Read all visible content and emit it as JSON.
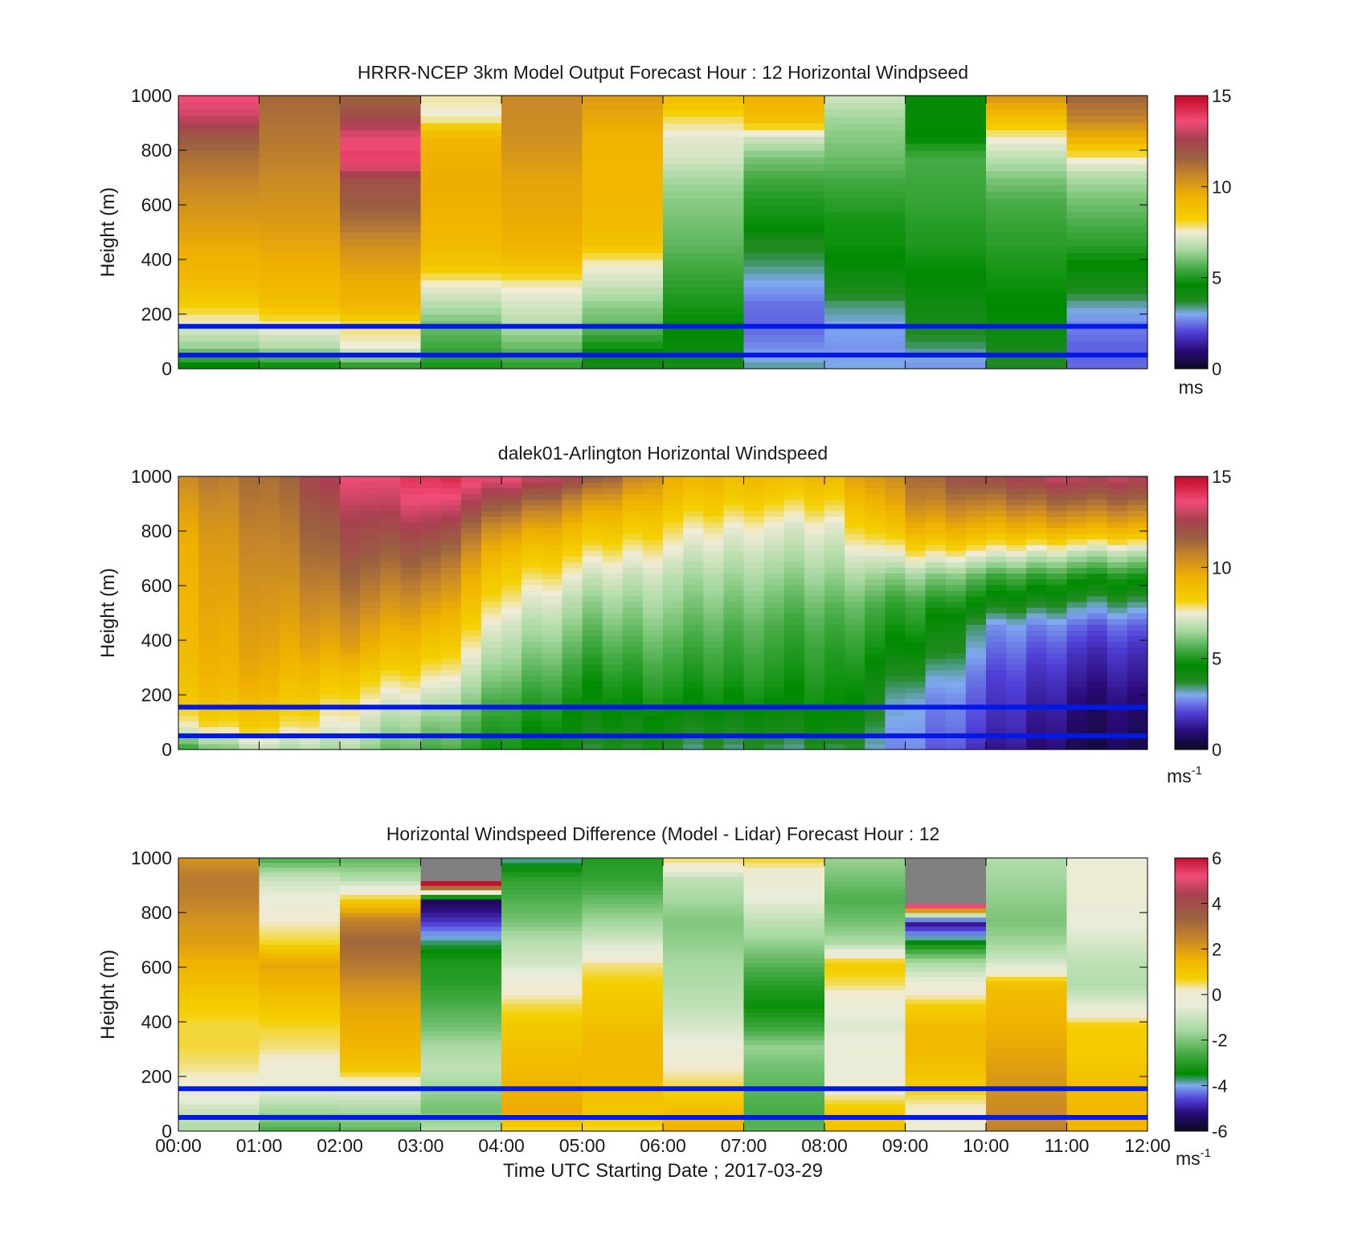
{
  "x_label": "Time UTC  Starting Date ; 2017-03-29",
  "time_ticks": [
    "00:00",
    "01:00",
    "02:00",
    "03:00",
    "04:00",
    "05:00",
    "06:00",
    "07:00",
    "08:00",
    "09:00",
    "10:00",
    "11:00",
    "12:00"
  ],
  "colors": {
    "reference_lines": "#0018e8",
    "missing": "#ffffff",
    "bad": "#808080"
  },
  "chart_data": [
    {
      "type": "heatmap",
      "title": "HRRR-NCEP 3km Model Output   Forecast Hour : 12 Horizontal Windpseed",
      "ylabel": "Height (m)",
      "xlabel": "",
      "ylim": [
        0,
        1000
      ],
      "y_ticks": [
        "0",
        "200",
        "400",
        "600",
        "800",
        "1000"
      ],
      "colorbar": {
        "min": 0,
        "max": 15,
        "ticks": [
          "0",
          "5",
          "10",
          "15"
        ],
        "unit": "ms",
        "unit_sup": ""
      },
      "reference_heights_m": [
        50,
        155
      ],
      "x_hours": [
        0,
        1,
        2,
        3,
        4,
        5,
        6,
        7,
        8,
        9,
        10,
        11
      ],
      "z_profiles_ms": [
        [
          4.5,
          6.5,
          7.5,
          8.5,
          9.2,
          9.6,
          9.9,
          10.3,
          10.6,
          11.0,
          11.4,
          12.0,
          13.3,
          14.0
        ],
        [
          4.5,
          6.6,
          7.5,
          8.8,
          9.2,
          9.5,
          9.8,
          10.1,
          10.3,
          10.5,
          10.8,
          11.0,
          11.2,
          11.4
        ],
        [
          4.6,
          7.2,
          7.6,
          9.0,
          9.3,
          9.7,
          10.2,
          11.0,
          11.5,
          11.9,
          13.7,
          13.2,
          12.0,
          11.2
        ],
        [
          5.0,
          5.5,
          6.0,
          6.8,
          7.6,
          8.8,
          9.2,
          9.4,
          9.6,
          9.7,
          9.6,
          9.4,
          7.6,
          7.8
        ],
        [
          5.0,
          5.7,
          6.5,
          7.0,
          7.5,
          8.7,
          9.3,
          9.5,
          9.6,
          9.7,
          10.0,
          10.3,
          10.4,
          10.5
        ],
        [
          4.2,
          5.0,
          6.0,
          6.5,
          7.2,
          7.8,
          9.0,
          9.3,
          9.4,
          9.5,
          9.5,
          9.6,
          10.0,
          10.3
        ],
        [
          4.0,
          4.3,
          4.6,
          4.9,
          5.2,
          5.5,
          5.8,
          6.0,
          6.2,
          6.5,
          7.1,
          7.3,
          8.0,
          9.0
        ],
        [
          3.1,
          2.5,
          2.1,
          2.2,
          2.7,
          3.2,
          3.6,
          4.5,
          4.8,
          5.2,
          5.8,
          6.8,
          8.8,
          9.2
        ],
        [
          3.2,
          2.9,
          3.1,
          3.5,
          4.2,
          4.6,
          4.9,
          5.0,
          5.3,
          5.6,
          6.0,
          6.3,
          6.6,
          7.2
        ],
        [
          2.6,
          3.3,
          3.8,
          4.0,
          4.3,
          4.6,
          4.9,
          5.0,
          5.2,
          5.3,
          5.4,
          4.5,
          4.3,
          4.4
        ],
        [
          4.0,
          4.2,
          4.6,
          4.8,
          5.0,
          5.2,
          5.4,
          5.6,
          5.8,
          6.3,
          7.0,
          7.8,
          9.2,
          10.5
        ],
        [
          2.4,
          2.3,
          2.6,
          3.2,
          4.0,
          4.6,
          5.2,
          5.6,
          6.0,
          6.5,
          7.6,
          9.5,
          10.8,
          11.5
        ]
      ]
    },
    {
      "type": "heatmap",
      "title": "dalek01-Arlington  Horizontal Windspeed",
      "ylabel": "Height (m)",
      "xlabel": "",
      "ylim": [
        0,
        1000
      ],
      "y_ticks": [
        "0",
        "200",
        "400",
        "600",
        "800",
        "1000"
      ],
      "colorbar": {
        "min": 0,
        "max": 15,
        "ticks": [
          "0",
          "5",
          "10",
          "15"
        ],
        "unit": "ms",
        "unit_sup": "-1"
      },
      "reference_heights_m": [
        50,
        155
      ],
      "x_hours": [
        0,
        1,
        2,
        3,
        4,
        5,
        6,
        7,
        8,
        9,
        10,
        11
      ],
      "z_profiles_ms": [
        [
          5.5,
          7.8,
          8.8,
          9.1,
          9.3,
          9.4,
          9.5,
          9.6,
          9.7,
          9.9,
          10.3,
          10.8
        ],
        [
          6.8,
          8.4,
          9.0,
          9.5,
          9.8,
          10.0,
          10.2,
          10.4,
          10.6,
          10.8,
          11.0,
          11.2
        ],
        [
          6.5,
          7.2,
          7.8,
          8.6,
          9.6,
          10.2,
          10.8,
          11.3,
          11.8,
          12.2,
          12.8,
          13.4
        ],
        [
          5.6,
          6.2,
          7.0,
          7.8,
          8.6,
          9.4,
          10.2,
          11.0,
          11.8,
          12.6,
          13.6,
          14.2
        ],
        [
          4.8,
          5.0,
          5.4,
          6.0,
          6.5,
          7.0,
          7.6,
          8.2,
          9.0,
          10.2,
          11.8,
          13.6
        ],
        [
          3.8,
          4.2,
          4.6,
          5.0,
          5.5,
          6.0,
          6.5,
          7.2,
          8.0,
          9.0,
          10.2,
          12.0
        ],
        [
          3.6,
          4.2,
          4.8,
          5.2,
          5.6,
          6.0,
          6.4,
          6.8,
          7.4,
          8.0,
          8.8,
          9.6
        ],
        [
          3.4,
          4.0,
          4.6,
          5.0,
          5.3,
          5.6,
          6.0,
          6.4,
          6.9,
          7.4,
          8.2,
          9.0
        ],
        [
          3.6,
          4.4,
          4.8,
          5.0,
          5.2,
          5.5,
          5.9,
          6.4,
          6.9,
          7.4,
          8.2,
          9.2
        ],
        [
          2.6,
          2.8,
          3.0,
          3.6,
          4.4,
          4.9,
          5.4,
          6.4,
          8.0,
          9.5,
          10.6,
          11.2
        ],
        [
          1.4,
          1.8,
          2.0,
          2.2,
          2.6,
          3.0,
          4.4,
          5.6,
          7.6,
          9.5,
          11.0,
          12.5
        ],
        [
          0.6,
          0.8,
          1.0,
          1.4,
          1.8,
          2.4,
          3.6,
          5.0,
          7.0,
          9.6,
          11.4,
          13.0
        ]
      ]
    },
    {
      "type": "heatmap",
      "title": "Horizontal Windspeed Difference (Model - Lidar) Forecast Hour : 12",
      "ylabel": "Height (m)",
      "xlabel": "Time UTC  Starting Date ; 2017-03-29",
      "ylim": [
        0,
        1000
      ],
      "y_ticks": [
        "0",
        "200",
        "400",
        "600",
        "800",
        "1000"
      ],
      "colorbar": {
        "min": -6,
        "max": 6,
        "ticks": [
          "-6",
          "-4",
          "-2",
          "0",
          "2",
          "4",
          "6"
        ],
        "unit": "ms",
        "unit_sup": "-1"
      },
      "reference_heights_m": [
        50,
        155
      ],
      "x_hours": [
        0,
        1,
        2,
        3,
        4,
        5,
        6,
        7,
        8,
        9,
        10,
        11
      ],
      "z_profiles_ms": [
        [
          -1.2,
          -0.8,
          0.2,
          0.6,
          0.8,
          0.8,
          1.0,
          1.4,
          1.8,
          2.2,
          2.4,
          2.8,
          3.0,
          2.4
        ],
        [
          -2.6,
          -1.6,
          -0.6,
          0.0,
          0.4,
          0.6,
          1.0,
          1.5,
          1.8,
          0.6,
          0.2,
          -0.4,
          -1.0,
          -2.6
        ],
        [
          -2.6,
          -1.8,
          -0.8,
          0.8,
          1.2,
          1.4,
          1.6,
          2.0,
          2.6,
          3.0,
          2.4,
          0.6,
          -1.6,
          -2.6
        ],
        [
          -1.2,
          -2.0,
          -1.6,
          -1.0,
          -1.4,
          -2.0,
          -2.4,
          -2.8,
          -3.0,
          -3.6,
          -4.6,
          -5.4,
          9.0,
          9.0
        ],
        [
          0.4,
          1.6,
          1.4,
          1.2,
          1.0,
          0.8,
          0.4,
          -0.2,
          -1.0,
          -1.4,
          -2.2,
          -2.6,
          -3.0,
          -4.0
        ],
        [
          0.8,
          1.2,
          1.4,
          1.6,
          1.6,
          1.4,
          1.2,
          1.0,
          0.6,
          -0.6,
          -1.4,
          -2.0,
          -2.6,
          -2.8
        ],
        [
          1.6,
          1.2,
          0.6,
          0.2,
          -0.4,
          -0.8,
          -1.2,
          -1.4,
          -1.6,
          -1.8,
          -2.0,
          -1.6,
          -1.2,
          0.6
        ],
        [
          -2.6,
          -2.8,
          -2.6,
          -2.4,
          -2.0,
          -3.0,
          -3.6,
          -3.2,
          -2.6,
          -2.0,
          -1.4,
          -0.8,
          -0.4,
          0.4
        ],
        [
          1.2,
          1.0,
          0.2,
          -0.4,
          -0.2,
          -0.6,
          -0.2,
          0.6,
          1.0,
          -1.4,
          -2.0,
          -2.4,
          -2.0,
          -1.6
        ],
        [
          -0.2,
          0.0,
          0.6,
          1.0,
          1.2,
          1.2,
          0.6,
          -0.4,
          -1.6,
          -3.6,
          -5.4,
          9.0,
          9.0,
          9.0
        ],
        [
          2.8,
          2.6,
          2.4,
          2.2,
          2.0,
          1.8,
          1.6,
          1.4,
          -0.6,
          -1.4,
          -1.8,
          -1.6,
          -1.4,
          -1.2
        ],
        [
          1.4,
          1.4,
          1.2,
          1.0,
          0.8,
          0.8,
          -0.6,
          -1.4,
          -1.2,
          -0.8,
          -0.4,
          -0.2,
          0.0,
          -0.4
        ]
      ]
    }
  ]
}
